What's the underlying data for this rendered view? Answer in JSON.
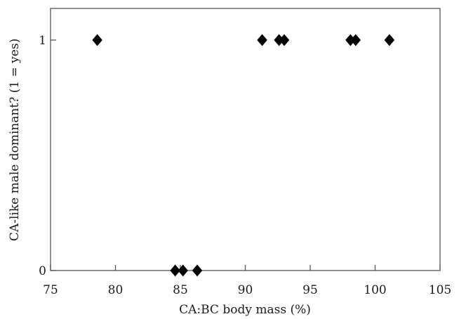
{
  "chart_data": {
    "type": "scatter",
    "xlabel": "CA:BC body mass (%)",
    "ylabel": "CA-like male dominant? (1 = yes)",
    "xlim": [
      75,
      105
    ],
    "ylim": [
      0,
      1
    ],
    "x_ticks": [
      75,
      80,
      85,
      90,
      95,
      100,
      105
    ],
    "x_tick_labels": [
      "75",
      "80",
      "85",
      "90",
      "95",
      "100",
      "105"
    ],
    "y_ticks": [
      0,
      1
    ],
    "y_tick_labels": [
      "0",
      "1"
    ],
    "grid": false,
    "marker": "diamond",
    "marker_color": "#000000",
    "points": [
      {
        "x": 78.6,
        "y": 1
      },
      {
        "x": 91.3,
        "y": 1
      },
      {
        "x": 92.6,
        "y": 1
      },
      {
        "x": 93.0,
        "y": 1
      },
      {
        "x": 98.1,
        "y": 1
      },
      {
        "x": 98.5,
        "y": 1
      },
      {
        "x": 101.1,
        "y": 1
      },
      {
        "x": 84.6,
        "y": 0
      },
      {
        "x": 85.2,
        "y": 0
      },
      {
        "x": 86.3,
        "y": 0
      }
    ]
  }
}
